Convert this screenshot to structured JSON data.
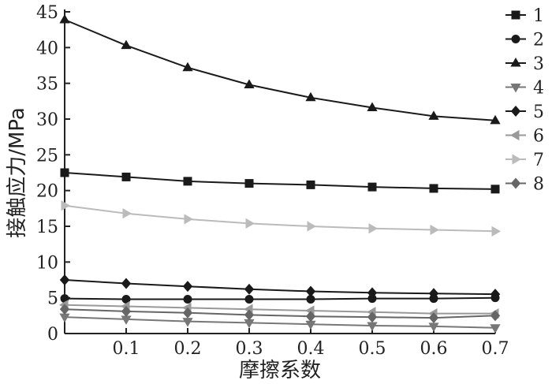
{
  "chart_data": {
    "type": "line",
    "title": "",
    "xlabel": "摩擦系数",
    "ylabel": "接触应力/MPa",
    "x": [
      0.0,
      0.1,
      0.2,
      0.3,
      0.4,
      0.5,
      0.6,
      0.7
    ],
    "xlim": [
      0.0,
      0.7
    ],
    "ylim": [
      0,
      45
    ],
    "x_ticks": [
      0.1,
      0.2,
      0.3,
      0.4,
      0.5,
      0.6,
      0.7
    ],
    "x_tick_labels": [
      "0.1",
      "0.2",
      "0.3",
      "0.4",
      "0.5",
      "0.6",
      "0.7"
    ],
    "y_ticks": [
      0,
      5,
      10,
      15,
      20,
      25,
      30,
      35,
      40,
      45
    ],
    "y_tick_labels": [
      "0",
      "5",
      "10",
      "15",
      "20",
      "25",
      "30",
      "35",
      "40",
      "45"
    ],
    "grid": false,
    "legend_position": "right",
    "series": [
      {
        "name": "1",
        "marker": "square",
        "color": "#1a1a1a",
        "values": [
          22.5,
          21.9,
          21.3,
          21.0,
          20.8,
          20.5,
          20.3,
          20.2
        ]
      },
      {
        "name": "2",
        "marker": "circle",
        "color": "#1a1a1a",
        "values": [
          4.9,
          4.8,
          4.8,
          4.8,
          4.8,
          4.9,
          4.9,
          5.0
        ]
      },
      {
        "name": "3",
        "marker": "triangle-up",
        "color": "#1a1a1a",
        "values": [
          43.9,
          40.3,
          37.2,
          34.8,
          33.0,
          31.6,
          30.4,
          29.8
        ]
      },
      {
        "name": "4",
        "marker": "triangle-down",
        "color": "#777777",
        "values": [
          2.3,
          2.0,
          1.7,
          1.5,
          1.3,
          1.1,
          1.0,
          0.8
        ]
      },
      {
        "name": "5",
        "marker": "diamond",
        "color": "#1a1a1a",
        "values": [
          7.5,
          7.0,
          6.6,
          6.2,
          5.9,
          5.7,
          5.6,
          5.5
        ]
      },
      {
        "name": "6",
        "marker": "triangle-left",
        "color": "#999999",
        "values": [
          4.0,
          3.8,
          3.6,
          3.4,
          3.2,
          3.0,
          2.8,
          2.8
        ]
      },
      {
        "name": "7",
        "marker": "triangle-right",
        "color": "#bbbbbb",
        "values": [
          17.9,
          16.8,
          16.0,
          15.4,
          15.0,
          14.7,
          14.5,
          14.3
        ]
      },
      {
        "name": "8",
        "marker": "diamond",
        "color": "#666666",
        "values": [
          3.4,
          3.1,
          2.9,
          2.6,
          2.4,
          2.3,
          2.2,
          2.5
        ]
      }
    ]
  }
}
